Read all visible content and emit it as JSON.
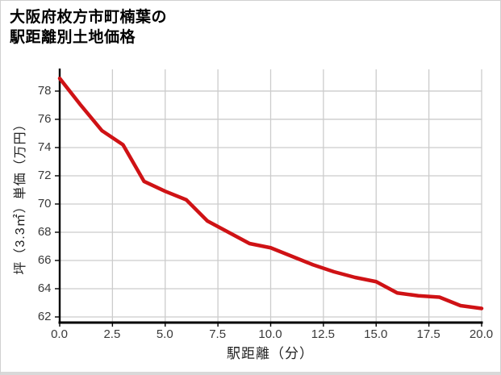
{
  "window": {
    "background": "#ffffff",
    "border_color": "#d1d1d1",
    "bottom_border_color": "#d9d9d9"
  },
  "title": {
    "text_line1": "大阪府枚方市町楠葉の",
    "text_line2": "駅距離別土地価格"
  },
  "chart_data": {
    "type": "line",
    "title": "大阪府枚方市町楠葉の駅距離別土地価格",
    "xlabel": "駅距離（分）",
    "ylabel": "坪（3.3㎡）単価（万円）",
    "x": [
      0,
      1,
      2,
      3,
      4,
      5,
      6,
      7,
      8,
      9,
      10,
      11,
      12,
      13,
      14,
      15,
      16,
      17,
      18,
      19,
      20
    ],
    "y": [
      78.9,
      77.0,
      75.2,
      74.2,
      71.6,
      70.9,
      70.3,
      68.8,
      68.0,
      67.2,
      66.9,
      66.3,
      65.7,
      65.2,
      64.8,
      64.5,
      63.7,
      63.5,
      63.4,
      62.8,
      62.6
    ],
    "xlim": [
      0,
      20
    ],
    "ylim": [
      61.6,
      79.54
    ],
    "xtick_values": [
      0,
      2.5,
      5,
      7.5,
      10,
      12.5,
      15,
      17.5,
      20
    ],
    "xtick_labels": [
      "0.0",
      "2.5",
      "5.0",
      "7.5",
      "10.0",
      "12.5",
      "15.0",
      "17.5",
      "20.0"
    ],
    "ytick_values": [
      62,
      64,
      66,
      68,
      70,
      72,
      74,
      76,
      78
    ],
    "ytick_labels": [
      "62",
      "64",
      "66",
      "68",
      "70",
      "72",
      "74",
      "76",
      "78"
    ],
    "grid": true,
    "legend": "none",
    "line_width": 4.5,
    "line_color": "#cf1215",
    "grid_color": "#cccccc",
    "axis_color": "#000000",
    "tick_label_color": "#3a3a3a"
  }
}
